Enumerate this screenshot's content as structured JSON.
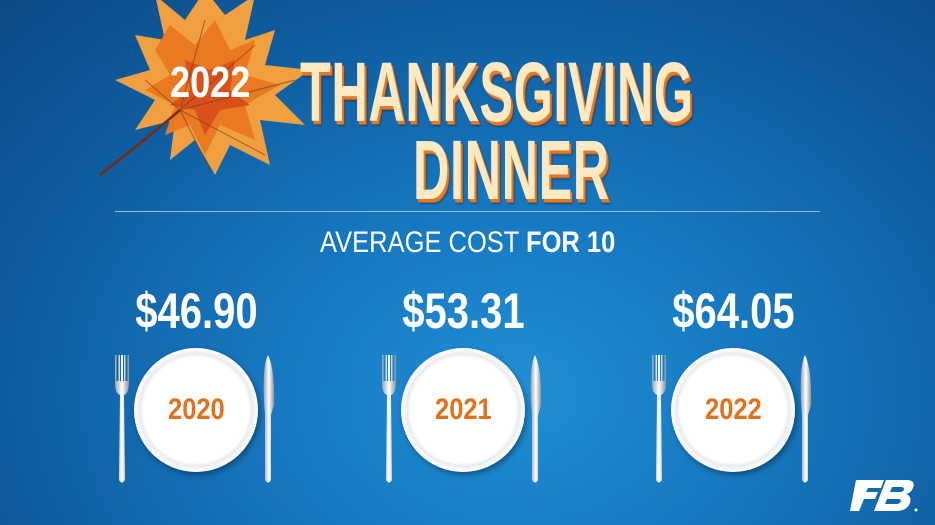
{
  "header": {
    "year": "2022",
    "title_line1": "THANKSGIVING",
    "title_line2": "DINNER"
  },
  "subtitle": {
    "regular": "AVERAGE COST ",
    "bold": "FOR 10"
  },
  "items": [
    {
      "price": "$46.90",
      "year": "2020"
    },
    {
      "price": "$53.31",
      "year": "2021"
    },
    {
      "price": "$64.05",
      "year": "2022"
    }
  ],
  "colors": {
    "background": "#1677bf",
    "title": "#fde9c2",
    "title_shadow": "#e07b2a",
    "plate_year": "#e2711d"
  },
  "icons": [
    "maple-leaf-icon",
    "fork-icon",
    "plate-icon",
    "knife-icon",
    "farm-bureau-logo"
  ]
}
